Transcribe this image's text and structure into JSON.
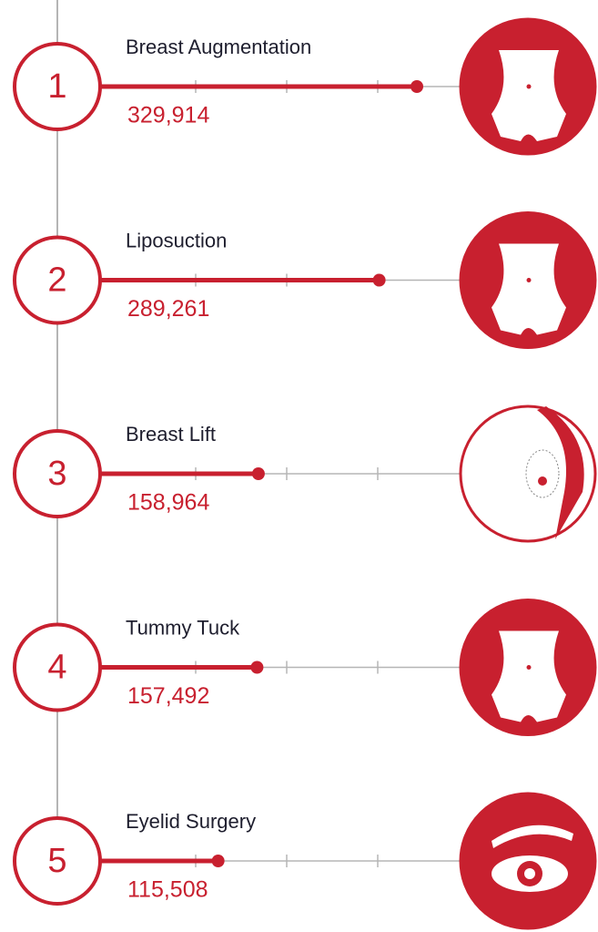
{
  "chart_data": {
    "type": "bar",
    "orientation": "horizontal",
    "ranks": [
      "1",
      "2",
      "3",
      "4",
      "5"
    ],
    "categories": [
      "Breast Augmentation",
      "Liposuction",
      "Breast Lift",
      "Tummy Tuck",
      "Eyelid Surgery"
    ],
    "values": [
      329914,
      289261,
      158964,
      157492,
      115508
    ],
    "value_labels": [
      "329,914",
      "289,261",
      "158,964",
      "157,492",
      "115,508"
    ],
    "color": "#c8202f"
  }
}
